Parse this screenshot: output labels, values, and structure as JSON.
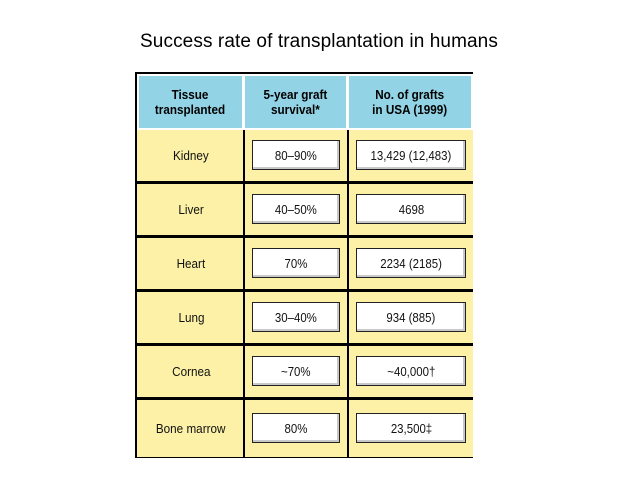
{
  "title": "Success rate of transplantation in humans",
  "table": {
    "headers": [
      "Tissue\ntransplanted",
      "5-year graft\nsurvival*",
      "No. of grafts\nin USA (1999)"
    ],
    "rows": [
      {
        "tissue": "Kidney",
        "survival": "80–90%",
        "grafts": "13,429 (12,483)"
      },
      {
        "tissue": "Liver",
        "survival": "40–50%",
        "grafts": "4698"
      },
      {
        "tissue": "Heart",
        "survival": "70%",
        "grafts": "2234 (2185)"
      },
      {
        "tissue": "Lung",
        "survival": "30–40%",
        "grafts": "934 (885)"
      },
      {
        "tissue": "Cornea",
        "survival": "~70%",
        "grafts": "~40,000†"
      },
      {
        "tissue": "Bone marrow",
        "survival": "80%",
        "grafts": "23,500‡"
      }
    ]
  },
  "colors": {
    "header_fill": "#92d4e6",
    "row_fill": "#fcf1a7"
  }
}
